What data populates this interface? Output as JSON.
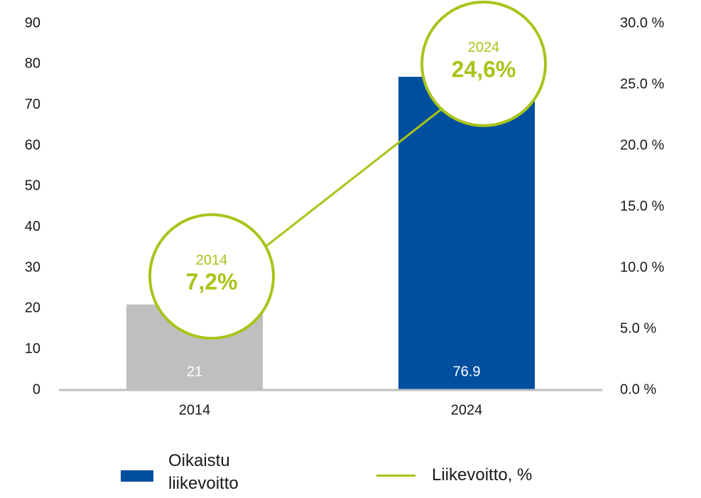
{
  "chart_data": {
    "type": "bar_line",
    "categories": [
      "2014",
      "2024"
    ],
    "series": [
      {
        "name": "Oikaistu liikevoitto",
        "type": "bar",
        "color": "#004f9f",
        "colors": [
          "#bfbfbf",
          "#004f9f"
        ],
        "values": [
          21,
          76.9
        ]
      },
      {
        "name": "Liikevoitto, %",
        "type": "line",
        "axis": "y2",
        "color": "#a8c418",
        "values": [
          7.2,
          24.6
        ],
        "value_labels": [
          "7,2%",
          "24,6%"
        ]
      }
    ],
    "ylim": [
      0,
      90
    ],
    "yticks": [
      0,
      10,
      20,
      30,
      40,
      50,
      60,
      70,
      80,
      90
    ],
    "y2lim": [
      0,
      30
    ],
    "y2ticks": [
      {
        "value": 0,
        "label": "0.0 %"
      },
      {
        "value": 5,
        "label": "5.0 %"
      },
      {
        "value": 10,
        "label": "10.0 %"
      },
      {
        "value": 15,
        "label": "15.0 %"
      },
      {
        "value": 20,
        "label": "20.0 %"
      },
      {
        "value": 25,
        "label": "25.0 %"
      },
      {
        "value": 30,
        "label": "30.0 %"
      }
    ],
    "legend": "bottom"
  }
}
